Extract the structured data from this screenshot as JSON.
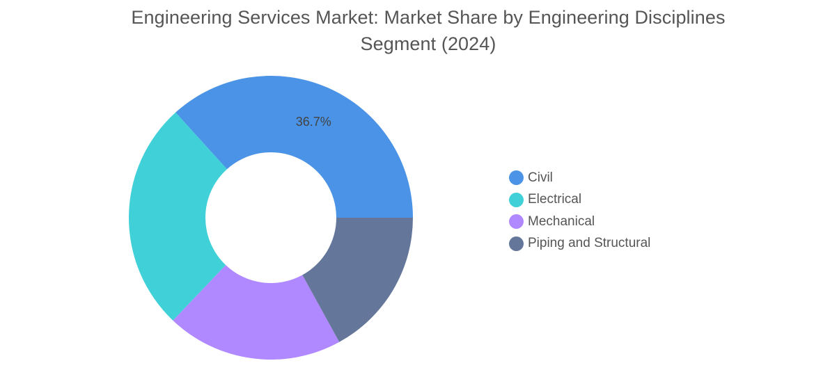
{
  "chart_data": {
    "type": "pie",
    "title_lines": [
      "Engineering Services Market: Market Share by Engineering Disciplines",
      "Segment (2024)"
    ],
    "categories": [
      "Civil",
      "Electrical",
      "Mechanical",
      "Piping and Structural"
    ],
    "values": [
      36.7,
      26.2,
      20.1,
      17.0
    ],
    "value_labels": [
      "36.7%",
      "",
      "",
      ""
    ],
    "colors": [
      "#4a93e6",
      "#40d0d8",
      "#b088ff",
      "#64779a"
    ],
    "donut": true,
    "start_angle": "3 o'clock, counter-clockwise",
    "legend_position": "right"
  }
}
